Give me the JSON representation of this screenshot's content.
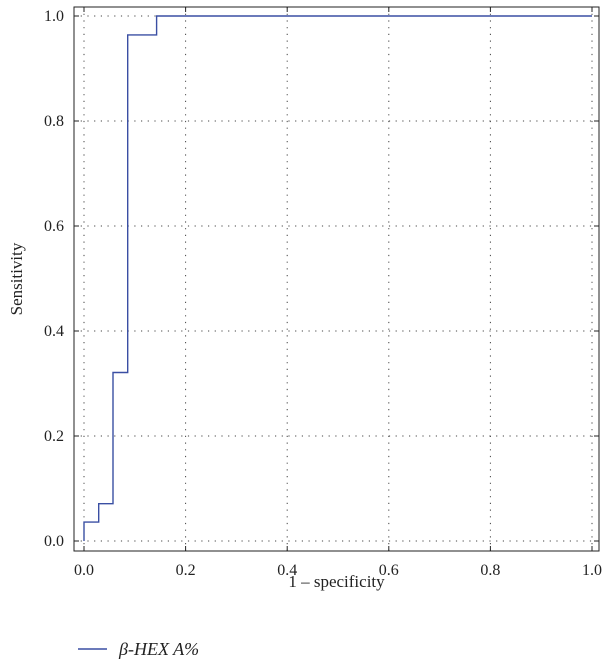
{
  "chart_data": {
    "type": "line",
    "title": "",
    "xlabel": "1 – specificity",
    "ylabel": "Sensitivity",
    "xlim": [
      0,
      1
    ],
    "ylim": [
      0,
      1
    ],
    "xticks": [
      0.0,
      0.2,
      0.4,
      0.6,
      0.8,
      1.0
    ],
    "yticks": [
      0.0,
      0.2,
      0.4,
      0.6,
      0.8,
      1.0
    ],
    "xtick_labels": [
      "0.0",
      "0.2",
      "0.4",
      "0.6",
      "0.8",
      "1.0"
    ],
    "ytick_labels": [
      "0.0",
      "0.2",
      "0.4",
      "0.6",
      "0.8",
      "1.0"
    ],
    "grid": true,
    "legend_position": "bottom-left",
    "series": [
      {
        "name": "β-HEX A%",
        "color": "#3a4fa3",
        "step": true,
        "x": [
          0.0,
          0.0,
          0.029,
          0.029,
          0.057,
          0.057,
          0.086,
          0.086,
          0.143,
          0.143,
          1.0
        ],
        "y": [
          0.0,
          0.036,
          0.036,
          0.071,
          0.071,
          0.321,
          0.321,
          0.964,
          0.964,
          1.0,
          1.0
        ]
      }
    ]
  }
}
